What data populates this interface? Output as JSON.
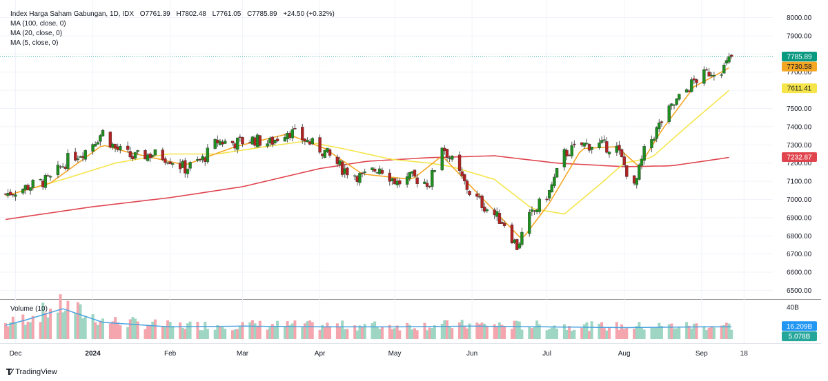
{
  "legend": {
    "title": "Index Harga Saham Gabungan, 1D, IDX",
    "open": "O7761.39",
    "high": "H7802.48",
    "low": "L7761.05",
    "close": "C7785.89",
    "change": "+24.50 (+0.32%)",
    "ma100": "MA (100, close, 0)",
    "ma20": "MA (20, close, 0)",
    "ma5": "MA (5, close, 0)"
  },
  "volume_legend": "Volume (10)",
  "brand": "TradingView",
  "colors": {
    "up": "#26a69a",
    "up_candle": "#1e8e1e",
    "down": "#b22222",
    "ma100": "#e0454e",
    "ma20": "#f5e54a",
    "ma5": "#f5a623",
    "vol_up": "#9fd6c3",
    "vol_down": "#f4a5ad",
    "vol_ma": "#4aa3df"
  },
  "chart_data": {
    "type": "candlestick",
    "title": "Index Harga Saham Gabungan, 1D, IDX",
    "y_ticks": [
      6500,
      6600,
      6700,
      6800,
      6900,
      7000,
      7100,
      7200,
      7300,
      7400,
      7500,
      7600,
      7700,
      7800,
      7900,
      8000
    ],
    "ylim": [
      6460,
      8040
    ],
    "x_ticks": [
      "Dec",
      "2024",
      "Feb",
      "Mar",
      "Apr",
      "May",
      "Jun",
      "Jul",
      "Aug",
      "Sep",
      "18"
    ],
    "x_tick_dates": [
      "2023-12-01",
      "2024-01-01",
      "2024-02-01",
      "2024-03-01",
      "2024-04-01",
      "2024-05-01",
      "2024-06-01",
      "2024-07-01",
      "2024-08-01",
      "2024-09-01",
      "2024-09-18"
    ],
    "xlim": [
      "2023-11-27",
      "2024-09-29"
    ],
    "price_path": [
      [
        "2023-11-27",
        7030
      ],
      [
        "2023-12-08",
        7080
      ],
      [
        "2023-12-15",
        7110
      ],
      [
        "2023-12-22",
        7220
      ],
      [
        "2023-12-29",
        7270
      ],
      [
        "2024-01-05",
        7370
      ],
      [
        "2024-01-10",
        7280
      ],
      [
        "2024-01-17",
        7230
      ],
      [
        "2024-01-25",
        7250
      ],
      [
        "2024-01-31",
        7230
      ],
      [
        "2024-02-07",
        7170
      ],
      [
        "2024-02-14",
        7220
      ],
      [
        "2024-02-20",
        7320
      ],
      [
        "2024-02-27",
        7310
      ],
      [
        "2024-03-05",
        7330
      ],
      [
        "2024-03-12",
        7310
      ],
      [
        "2024-03-19",
        7380
      ],
      [
        "2024-03-27",
        7320
      ],
      [
        "2024-04-03",
        7260
      ],
      [
        "2024-04-10",
        7170
      ],
      [
        "2024-04-18",
        7120
      ],
      [
        "2024-04-25",
        7180
      ],
      [
        "2024-05-02",
        7090
      ],
      [
        "2024-05-08",
        7120
      ],
      [
        "2024-05-15",
        7090
      ],
      [
        "2024-05-20",
        7300
      ],
      [
        "2024-05-24",
        7210
      ],
      [
        "2024-05-31",
        7040
      ],
      [
        "2024-06-07",
        6950
      ],
      [
        "2024-06-14",
        6870
      ],
      [
        "2024-06-19",
        6740
      ],
      [
        "2024-06-24",
        6900
      ],
      [
        "2024-07-02",
        7040
      ],
      [
        "2024-07-08",
        7250
      ],
      [
        "2024-07-15",
        7300
      ],
      [
        "2024-07-22",
        7300
      ],
      [
        "2024-07-29",
        7280
      ],
      [
        "2024-08-05",
        7060
      ],
      [
        "2024-08-09",
        7260
      ],
      [
        "2024-08-16",
        7430
      ],
      [
        "2024-08-22",
        7540
      ],
      [
        "2024-08-29",
        7650
      ],
      [
        "2024-09-04",
        7700
      ],
      [
        "2024-09-10",
        7725
      ],
      [
        "2024-09-13",
        7785.89
      ]
    ],
    "series": [
      {
        "name": "MA (100, close, 0)",
        "last": "7232.87",
        "points": [
          [
            "2023-11-27",
            6890
          ],
          [
            "2024-01-01",
            6960
          ],
          [
            "2024-02-01",
            7010
          ],
          [
            "2024-03-01",
            7070
          ],
          [
            "2024-04-01",
            7170
          ],
          [
            "2024-04-20",
            7210
          ],
          [
            "2024-05-15",
            7230
          ],
          [
            "2024-06-10",
            7240
          ],
          [
            "2024-07-05",
            7200
          ],
          [
            "2024-08-01",
            7180
          ],
          [
            "2024-08-20",
            7185
          ],
          [
            "2024-09-13",
            7232.87
          ]
        ]
      },
      {
        "name": "MA (20, close, 0)",
        "last": "7611.41",
        "points": [
          [
            "2023-11-27",
            7020
          ],
          [
            "2023-12-20",
            7110
          ],
          [
            "2024-01-10",
            7200
          ],
          [
            "2024-01-31",
            7250
          ],
          [
            "2024-02-20",
            7250
          ],
          [
            "2024-03-10",
            7290
          ],
          [
            "2024-03-26",
            7320
          ],
          [
            "2024-04-10",
            7280
          ],
          [
            "2024-04-30",
            7220
          ],
          [
            "2024-05-15",
            7200
          ],
          [
            "2024-05-24",
            7180
          ],
          [
            "2024-06-10",
            7110
          ],
          [
            "2024-06-25",
            6950
          ],
          [
            "2024-07-08",
            6920
          ],
          [
            "2024-07-22",
            7080
          ],
          [
            "2024-08-01",
            7200
          ],
          [
            "2024-08-12",
            7230
          ],
          [
            "2024-08-26",
            7400
          ],
          [
            "2024-09-13",
            7611.41
          ]
        ]
      },
      {
        "name": "MA (5, close, 0)",
        "last": "7730.58",
        "points": [
          [
            "2023-11-27",
            7020
          ],
          [
            "2023-12-15",
            7090
          ],
          [
            "2024-01-05",
            7300
          ],
          [
            "2024-01-15",
            7260
          ],
          [
            "2024-02-07",
            7190
          ],
          [
            "2024-02-27",
            7290
          ],
          [
            "2024-03-19",
            7360
          ],
          [
            "2024-04-03",
            7280
          ],
          [
            "2024-04-18",
            7140
          ],
          [
            "2024-05-08",
            7110
          ],
          [
            "2024-05-20",
            7240
          ],
          [
            "2024-05-31",
            7080
          ],
          [
            "2024-06-14",
            6880
          ],
          [
            "2024-06-21",
            6780
          ],
          [
            "2024-07-02",
            6980
          ],
          [
            "2024-07-15",
            7280
          ],
          [
            "2024-07-29",
            7290
          ],
          [
            "2024-08-07",
            7180
          ],
          [
            "2024-08-16",
            7380
          ],
          [
            "2024-08-29",
            7620
          ],
          [
            "2024-09-13",
            7730.58
          ]
        ]
      }
    ],
    "last_close": "7785.89",
    "volume": {
      "ticks": [
        "40B"
      ],
      "ylim": [
        0,
        45
      ],
      "ma_last": "16.209B",
      "last": "5.078B",
      "levels": [
        [
          "2023-11-27",
          18
        ],
        [
          "2023-12-05",
          25
        ],
        [
          "2023-12-20",
          40
        ],
        [
          "2024-01-05",
          22
        ],
        [
          "2024-02-01",
          16
        ],
        [
          "2024-03-01",
          17
        ],
        [
          "2024-04-01",
          16
        ],
        [
          "2024-05-01",
          16
        ],
        [
          "2024-06-01",
          17
        ],
        [
          "2024-07-01",
          16
        ],
        [
          "2024-08-01",
          15
        ],
        [
          "2024-09-01",
          16
        ],
        [
          "2024-09-13",
          16
        ]
      ]
    }
  },
  "price_labels": {
    "last": "7785.89",
    "ma5": "7730.58",
    "ma20": "7611.41",
    "ma100": "7232.87",
    "vol_ma": "16.209B",
    "vol": "5.078B"
  }
}
